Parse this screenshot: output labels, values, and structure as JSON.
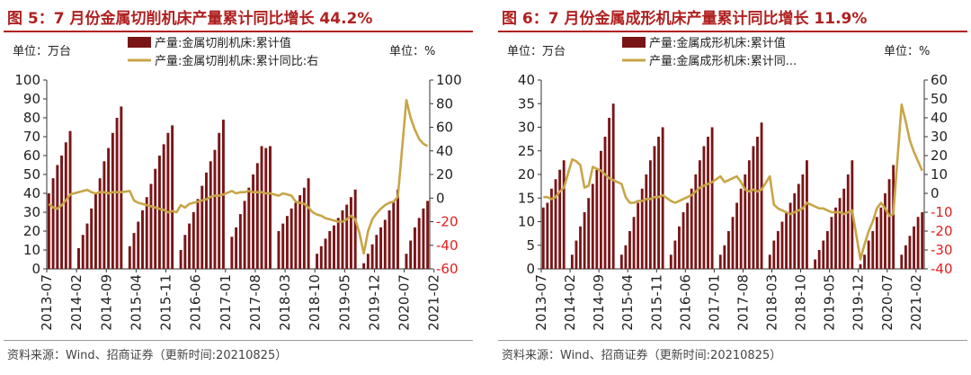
{
  "charts": [
    {
      "title": "图 5：7 月份金属切削机床产量累计同比增长 44.2%",
      "source": "资料来源：Wind、招商证券（更新时间:20210825）",
      "unit_left": "单位：万台",
      "unit_right": "单位：%",
      "legend_bar": "产量:金属切削机床:累计值",
      "legend_line": "产量:金属切削机床:累计同比:右"
    },
    {
      "title": "图 6：7 月份金属成形机床产量累计同比增长 11.9%",
      "source": "资料来源：Wind、招商证券（更新时间:20210825）",
      "unit_left": "单位：万台",
      "unit_right": "单位：%",
      "legend_bar": "产量:金属成形机床:累计值",
      "legend_line": "产量:金属成形机床:累计同..."
    }
  ],
  "colors": {
    "bar": "#7a1517",
    "line": "#c8a548",
    "right_axis": "#e02020",
    "title": "#b02020"
  },
  "chart_data": [
    {
      "type": "bar",
      "x_tick_labels": [
        "2013-07",
        "2014-02",
        "2014-09",
        "2015-04",
        "2015-11",
        "2016-06",
        "2017-01",
        "2017-08",
        "2018-03",
        "2018-10",
        "2019-05",
        "2019-12",
        "2020-07",
        "2021-02"
      ],
      "ylim_left": [
        0,
        100
      ],
      "yticks_left": [
        0,
        10,
        20,
        30,
        40,
        50,
        60,
        70,
        80,
        90,
        100
      ],
      "ylim_right": [
        -60,
        100
      ],
      "yticks_right": [
        -60,
        -40,
        -20,
        0,
        20,
        40,
        60,
        80,
        100
      ],
      "series": [
        {
          "name": "产量:金属切削机床:累计值",
          "type": "bar",
          "axis": "left",
          "values": [
            40,
            48,
            55,
            60,
            67,
            73,
            null,
            11,
            18,
            24,
            32,
            40,
            48,
            57,
            64,
            72,
            80,
            86,
            null,
            12,
            19,
            25,
            31,
            38,
            45,
            53,
            60,
            66,
            72,
            76,
            null,
            10,
            18,
            24,
            30,
            37,
            44,
            51,
            57,
            63,
            72,
            79,
            null,
            17,
            22,
            29,
            36,
            43,
            50,
            56,
            65,
            64,
            65,
            null,
            20,
            24,
            28,
            32,
            35,
            39,
            43,
            48,
            null,
            8,
            12,
            16,
            20,
            23,
            27,
            31,
            34,
            38,
            42,
            null,
            3,
            8,
            13,
            18,
            22,
            26,
            31,
            36,
            42,
            null,
            8,
            15,
            22,
            27,
            32,
            36
          ]
        },
        {
          "name": "产量:金属切削机床:累计同比:右",
          "type": "line",
          "axis": "right",
          "values": [
            -5,
            -8,
            -9,
            -6,
            -2,
            3,
            null,
            null,
            null,
            7,
            5,
            4,
            5,
            5,
            4,
            5,
            5,
            5,
            null,
            6,
            -2,
            -4,
            -5,
            -6,
            -7,
            -8,
            -9,
            -10,
            -12,
            -11,
            -12,
            -6,
            -8,
            -5,
            -4,
            -3,
            -2,
            -1,
            1,
            2,
            2,
            3,
            null,
            6,
            4,
            5,
            5,
            6,
            5,
            5,
            5,
            4,
            4,
            null,
            2,
            4,
            3,
            2,
            -3,
            -4,
            -5,
            -8,
            -12,
            -14,
            -15,
            -17,
            -18,
            -19,
            -20,
            -20,
            -18,
            -15,
            -18,
            -30,
            -47,
            -28,
            -18,
            -13,
            -9,
            -6,
            -4,
            -3,
            1,
            null,
            83,
            68,
            58,
            50,
            46,
            44
          ]
        }
      ]
    },
    {
      "type": "bar",
      "x_tick_labels": [
        "2013-07",
        "2014-02",
        "2014-09",
        "2015-04",
        "2015-11",
        "2016-06",
        "2017-01",
        "2017-08",
        "2018-03",
        "2018-10",
        "2019-05",
        "2019-12",
        "2020-07",
        "2021-02"
      ],
      "ylim_left": [
        0,
        40
      ],
      "yticks_left": [
        0,
        5,
        10,
        15,
        20,
        25,
        30,
        35,
        40
      ],
      "ylim_right": [
        -40,
        60
      ],
      "yticks_right": [
        -40,
        -30,
        -20,
        -10,
        0,
        10,
        20,
        30,
        40,
        50,
        60
      ],
      "series": [
        {
          "name": "产量:金属成形机床:累计值",
          "type": "bar",
          "axis": "left",
          "values": [
            13,
            14,
            17,
            19,
            21,
            23,
            null,
            3,
            6,
            9,
            12,
            15,
            18,
            21,
            25,
            28,
            32,
            35,
            null,
            3,
            5,
            8,
            11,
            14,
            17,
            20,
            23,
            26,
            28,
            30,
            null,
            3,
            6,
            9,
            12,
            14,
            17,
            20,
            23,
            26,
            28,
            30,
            null,
            3,
            5,
            8,
            11,
            14,
            17,
            20,
            23,
            26,
            28,
            31,
            null,
            3,
            6,
            8,
            10,
            12,
            14,
            16,
            18,
            20,
            23,
            null,
            2,
            4,
            6,
            8,
            11,
            13,
            15,
            17,
            20,
            23,
            null,
            1,
            3,
            6,
            8,
            11,
            13,
            16,
            19,
            22,
            null,
            3,
            5,
            7,
            9,
            11,
            12
          ]
        },
        {
          "name": "产量:金属成形机床:累计同比:右",
          "type": "line",
          "axis": "right",
          "values": [
            -2,
            -2,
            -3,
            -2,
            1,
            3,
            null,
            18,
            17,
            15,
            3,
            4,
            14,
            13,
            12,
            10,
            8,
            7,
            null,
            5,
            -2,
            -5,
            -5,
            -4,
            -4,
            -3,
            -3,
            -2,
            -2,
            -1,
            null,
            -4,
            -5,
            -4,
            -3,
            -2,
            -1,
            1,
            3,
            4,
            5,
            6,
            null,
            9,
            6,
            7,
            8,
            9,
            6,
            2,
            1,
            2,
            1,
            2,
            null,
            9,
            -6,
            -8,
            -9,
            -10,
            -11,
            -10,
            -9,
            -8,
            -5,
            null,
            -7,
            -8,
            -8,
            -9,
            -10,
            -10,
            -10,
            -11,
            -10,
            -9,
            null,
            -35,
            -27,
            -20,
            -15,
            -8,
            -5,
            -8,
            -12,
            -11,
            null,
            47,
            38,
            28,
            22,
            17,
            12
          ]
        }
      ]
    }
  ]
}
